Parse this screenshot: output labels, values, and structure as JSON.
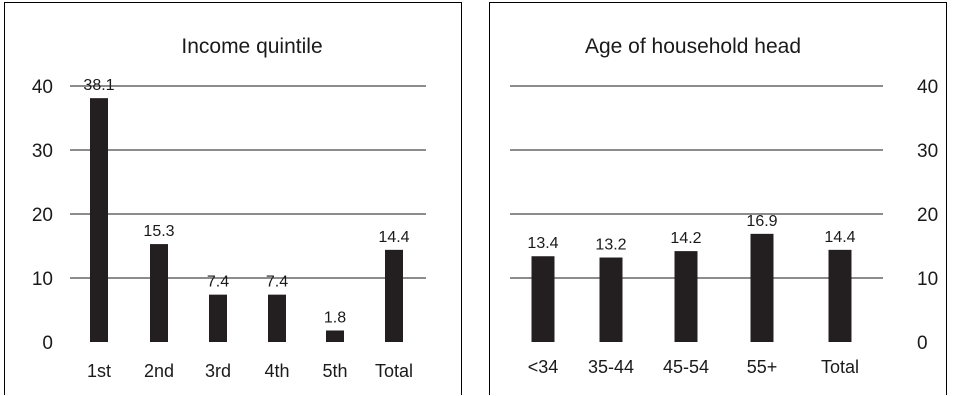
{
  "chart_data": [
    {
      "type": "bar",
      "title": "Income quintile",
      "categories": [
        "1st",
        "2nd",
        "3rd",
        "4th",
        "5th",
        "Total"
      ],
      "values": [
        38.1,
        15.3,
        7.4,
        7.4,
        1.8,
        14.4
      ],
      "data_labels": [
        "38.1",
        "15.3",
        "7.4",
        "7.4",
        "1.8",
        "14.4"
      ],
      "yticks": [
        "0",
        "10",
        "20",
        "30",
        "40"
      ],
      "ylim": [
        0,
        40
      ],
      "grid": true,
      "axis_side": "left",
      "bar_color": "#231f20"
    },
    {
      "type": "bar",
      "title": "Age of household head",
      "categories": [
        "<34",
        "35-44",
        "45-54",
        "55+",
        "Total"
      ],
      "values": [
        13.4,
        13.2,
        14.2,
        16.9,
        14.4
      ],
      "data_labels": [
        "13.4",
        "13.2",
        "14.2",
        "16.9",
        "14.4"
      ],
      "yticks": [
        "0",
        "10",
        "20",
        "30",
        "40"
      ],
      "ylim": [
        0,
        40
      ],
      "grid": true,
      "axis_side": "right",
      "bar_color": "#231f20"
    }
  ]
}
